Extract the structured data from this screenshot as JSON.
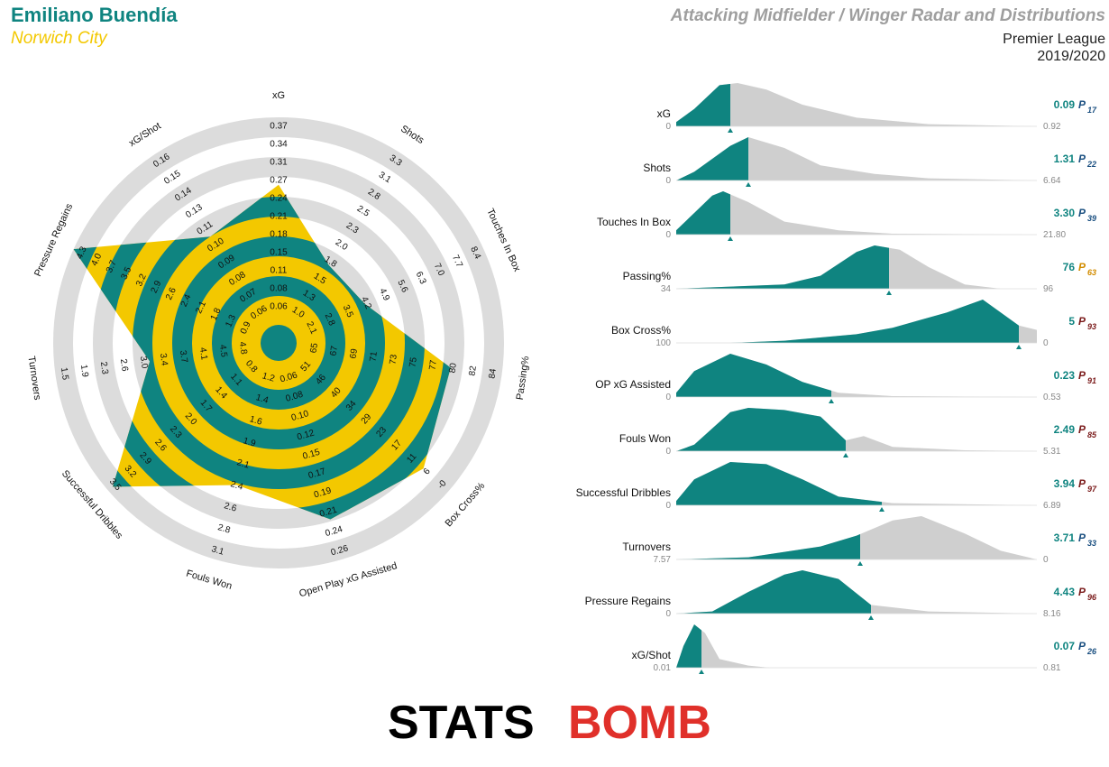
{
  "header": {
    "player": "Emiliano Buendía",
    "team": "Norwich City",
    "title": "Attacking Midfielder / Winger Radar and Distributions",
    "league": "Premier League",
    "season": "2019/2020"
  },
  "colors": {
    "teal": "#0f8480",
    "yellow": "#f3c800",
    "ring_grey": "#dcdcdc",
    "dist_grey": "#cfcfcf",
    "pct_blue": "#1a4f80",
    "pct_orange": "#d28c00",
    "pct_red": "#7a1a1a"
  },
  "logo": {
    "left": "STATS",
    "right": "BOMB"
  },
  "chart_data": [
    {
      "type": "radar",
      "axes": [
        {
          "label": "xG",
          "value": 0.09,
          "ticks": [
            "0.06",
            "0.08",
            "0.11",
            "0.15",
            "0.18",
            "0.21",
            "0.24",
            "0.27",
            "0.31",
            "0.34",
            "0.37"
          ]
        },
        {
          "label": "Shots",
          "value": 1.31,
          "ticks": [
            "1.0",
            "1.3",
            "1.5",
            "1.8",
            "2.0",
            "2.3",
            "2.5",
            "2.8",
            "3.1",
            "3.3"
          ]
        },
        {
          "label": "Touches In Box",
          "value": 3.3,
          "ticks": [
            "2.1",
            "2.8",
            "3.5",
            "4.2",
            "4.9",
            "5.6",
            "6.3",
            "7.0",
            "7.7",
            "8.4"
          ]
        },
        {
          "label": "Passing%",
          "value": 76,
          "ticks": [
            "65",
            "67",
            "69",
            "71",
            "73",
            "75",
            "77",
            "80",
            "82",
            "84"
          ]
        },
        {
          "label": "Box Cross%",
          "value": 5,
          "ticks": [
            "51",
            "46",
            "40",
            "34",
            "29",
            "23",
            "17",
            "11",
            "6",
            "-0"
          ]
        },
        {
          "label": "Open Play xG Assisted",
          "value": 0.23,
          "ticks": [
            "0.06",
            "0.08",
            "0.10",
            "0.12",
            "0.15",
            "0.17",
            "0.19",
            "0.21",
            "0.24",
            "0.26"
          ]
        },
        {
          "label": "Fouls Won",
          "value": 2.49,
          "ticks": [
            "1.2",
            "1.4",
            "1.6",
            "1.9",
            "2.1",
            "2.4",
            "2.6",
            "2.8",
            "3.1"
          ]
        },
        {
          "label": "Successful Dribbles",
          "value": 3.94,
          "ticks": [
            "0.8",
            "1.1",
            "1.4",
            "1.7",
            "2.0",
            "2.3",
            "2.6",
            "2.9",
            "3.2",
            "3.5"
          ]
        },
        {
          "label": "Turnovers",
          "value": 3.71,
          "ticks": [
            "4.8",
            "4.5",
            "4.1",
            "3.7",
            "3.4",
            "3.0",
            "2.6",
            "2.3",
            "1.9",
            "1.5"
          ]
        },
        {
          "label": "Pressure Regains",
          "value": 4.43,
          "ticks": [
            "0.9",
            "1.3",
            "1.8",
            "2.1",
            "2.4",
            "2.6",
            "2.9",
            "3.2",
            "3.5",
            "3.7",
            "4.0",
            "4.3"
          ]
        },
        {
          "label": "xG/Shot",
          "value": 0.07,
          "ticks": [
            "0.06",
            "0.07",
            "0.08",
            "0.09",
            "0.10",
            "0.11",
            "0.13",
            "0.14",
            "0.15",
            "0.16"
          ]
        }
      ],
      "radii_fraction": [
        0.66,
        0.33,
        0.34,
        0.74,
        0.83,
        0.79,
        0.61,
        0.97,
        0.52,
        1.0,
        0.5
      ]
    },
    {
      "type": "area",
      "distributions": [
        {
          "label": "xG",
          "min": "0",
          "max": "0.92",
          "value": "0.09",
          "percentile": "17",
          "pct_color": "pct_blue",
          "cut": 0.15,
          "shape": [
            [
              0,
              0.1
            ],
            [
              0.05,
              0.4
            ],
            [
              0.12,
              0.95
            ],
            [
              0.17,
              1
            ],
            [
              0.25,
              0.85
            ],
            [
              0.35,
              0.5
            ],
            [
              0.5,
              0.2
            ],
            [
              0.7,
              0.05
            ],
            [
              1,
              0
            ]
          ]
        },
        {
          "label": "Shots",
          "min": "0",
          "max": "6.64",
          "value": "1.31",
          "percentile": "22",
          "pct_color": "pct_blue",
          "cut": 0.2,
          "shape": [
            [
              0,
              0
            ],
            [
              0.05,
              0.2
            ],
            [
              0.15,
              0.8
            ],
            [
              0.2,
              1
            ],
            [
              0.3,
              0.75
            ],
            [
              0.4,
              0.35
            ],
            [
              0.55,
              0.15
            ],
            [
              0.7,
              0.05
            ],
            [
              1,
              0
            ]
          ]
        },
        {
          "label": "Touches In Box",
          "min": "0",
          "max": "21.80",
          "value": "3.30",
          "percentile": "39",
          "pct_color": "pct_blue",
          "cut": 0.15,
          "shape": [
            [
              0,
              0.1
            ],
            [
              0.05,
              0.5
            ],
            [
              0.1,
              0.9
            ],
            [
              0.13,
              1
            ],
            [
              0.2,
              0.75
            ],
            [
              0.3,
              0.3
            ],
            [
              0.45,
              0.1
            ],
            [
              0.6,
              0.02
            ],
            [
              1,
              0
            ]
          ]
        },
        {
          "label": "Passing%",
          "min": "34",
          "max": "96",
          "value": "76",
          "percentile": "63",
          "pct_color": "pct_orange",
          "cut": 0.59,
          "shape": [
            [
              0,
              0
            ],
            [
              0.15,
              0.05
            ],
            [
              0.3,
              0.1
            ],
            [
              0.4,
              0.3
            ],
            [
              0.5,
              0.85
            ],
            [
              0.55,
              1
            ],
            [
              0.62,
              0.9
            ],
            [
              0.7,
              0.5
            ],
            [
              0.8,
              0.1
            ],
            [
              0.9,
              0
            ]
          ]
        },
        {
          "label": "Box Cross%",
          "min": "100",
          "max": "0",
          "value": "5",
          "percentile": "93",
          "pct_color": "pct_red",
          "cut": 0.95,
          "shape": [
            [
              0.15,
              0
            ],
            [
              0.3,
              0.05
            ],
            [
              0.5,
              0.2
            ],
            [
              0.6,
              0.35
            ],
            [
              0.75,
              0.7
            ],
            [
              0.85,
              1
            ],
            [
              0.95,
              0.4
            ],
            [
              1,
              0.3
            ]
          ]
        },
        {
          "label": "OP xG Assisted",
          "min": "0",
          "max": "0.53",
          "value": "0.23",
          "percentile": "91",
          "pct_color": "pct_red",
          "cut": 0.43,
          "shape": [
            [
              0,
              0.1
            ],
            [
              0.05,
              0.6
            ],
            [
              0.15,
              1
            ],
            [
              0.25,
              0.75
            ],
            [
              0.35,
              0.35
            ],
            [
              0.45,
              0.1
            ],
            [
              0.6,
              0.02
            ],
            [
              1,
              0
            ]
          ]
        },
        {
          "label": "Fouls Won",
          "min": "0",
          "max": "5.31",
          "value": "2.49",
          "percentile": "85",
          "pct_color": "pct_red",
          "cut": 0.47,
          "shape": [
            [
              0,
              0
            ],
            [
              0.05,
              0.15
            ],
            [
              0.15,
              0.9
            ],
            [
              0.2,
              1
            ],
            [
              0.3,
              0.95
            ],
            [
              0.4,
              0.8
            ],
            [
              0.47,
              0.25
            ],
            [
              0.52,
              0.35
            ],
            [
              0.6,
              0.1
            ],
            [
              0.8,
              0.02
            ],
            [
              1,
              0
            ]
          ]
        },
        {
          "label": "Successful Dribbles",
          "min": "0",
          "max": "6.89",
          "value": "3.94",
          "percentile": "97",
          "pct_color": "pct_red",
          "cut": 0.57,
          "shape": [
            [
              0,
              0.1
            ],
            [
              0.05,
              0.6
            ],
            [
              0.15,
              1
            ],
            [
              0.25,
              0.95
            ],
            [
              0.35,
              0.6
            ],
            [
              0.45,
              0.2
            ],
            [
              0.6,
              0.05
            ],
            [
              1,
              0
            ]
          ]
        },
        {
          "label": "Turnovers",
          "min": "7.57",
          "max": "0",
          "value": "3.71",
          "percentile": "33",
          "pct_color": "pct_blue",
          "cut": 0.51,
          "shape": [
            [
              0,
              0
            ],
            [
              0.2,
              0.05
            ],
            [
              0.4,
              0.3
            ],
            [
              0.5,
              0.55
            ],
            [
              0.6,
              0.9
            ],
            [
              0.68,
              1
            ],
            [
              0.8,
              0.6
            ],
            [
              0.9,
              0.2
            ],
            [
              1,
              0
            ]
          ]
        },
        {
          "label": "Pressure Regains",
          "min": "0",
          "max": "8.16",
          "value": "4.43",
          "percentile": "96",
          "pct_color": "pct_red",
          "cut": 0.54,
          "shape": [
            [
              0,
              0
            ],
            [
              0.1,
              0.05
            ],
            [
              0.2,
              0.5
            ],
            [
              0.3,
              0.9
            ],
            [
              0.35,
              1
            ],
            [
              0.45,
              0.8
            ],
            [
              0.54,
              0.2
            ],
            [
              0.7,
              0.05
            ],
            [
              1,
              0
            ]
          ]
        },
        {
          "label": "xG/Shot",
          "min": "0.01",
          "max": "0.81",
          "value": "0.07",
          "percentile": "26",
          "pct_color": "pct_blue",
          "cut": 0.07,
          "shape": [
            [
              0,
              0
            ],
            [
              0.02,
              0.5
            ],
            [
              0.05,
              1
            ],
            [
              0.08,
              0.8
            ],
            [
              0.12,
              0.2
            ],
            [
              0.2,
              0.05
            ],
            [
              0.26,
              0
            ]
          ]
        }
      ]
    }
  ]
}
